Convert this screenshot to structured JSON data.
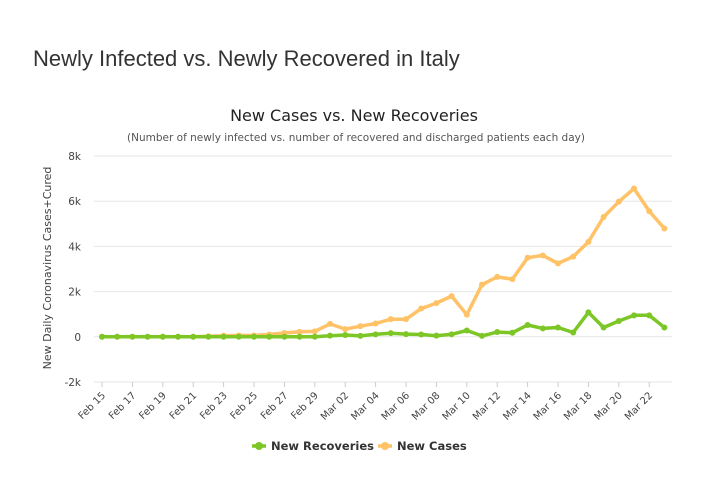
{
  "page": {
    "heading": "Newly Infected vs. Newly Recovered in Italy"
  },
  "chart_data": {
    "type": "line",
    "title": "New Cases vs. New Recoveries",
    "subtitle": "(Number of newly infected vs. number of recovered and discharged patients each day)",
    "ylabel": "New Daily Coronavirus Cases+Cured",
    "xlabel": "",
    "ylim": [
      -2000,
      8000
    ],
    "yticks": [
      -2000,
      0,
      2000,
      4000,
      6000,
      8000
    ],
    "ytick_labels": [
      "-2k",
      "0",
      "2k",
      "4k",
      "6k",
      "8k"
    ],
    "grid": true,
    "legend_position": "bottom-center",
    "x": [
      "Feb 15",
      "Feb 16",
      "Feb 17",
      "Feb 18",
      "Feb 19",
      "Feb 20",
      "Feb 21",
      "Feb 22",
      "Feb 23",
      "Feb 24",
      "Feb 25",
      "Feb 26",
      "Feb 27",
      "Feb 28",
      "Feb 29",
      "Mar 01",
      "Mar 02",
      "Mar 03",
      "Mar 04",
      "Mar 05",
      "Mar 06",
      "Mar 07",
      "Mar 08",
      "Mar 09",
      "Mar 10",
      "Mar 11",
      "Mar 12",
      "Mar 13",
      "Mar 14",
      "Mar 15",
      "Mar 16",
      "Mar 17",
      "Mar 18",
      "Mar 19",
      "Mar 20",
      "Mar 21",
      "Mar 22",
      "Mar 23"
    ],
    "x_tick_labels": [
      "Feb 15",
      "Feb 17",
      "Feb 19",
      "Feb 21",
      "Feb 23",
      "Feb 25",
      "Feb 27",
      "Feb 29",
      "Mar 02",
      "Mar 04",
      "Mar 06",
      "Mar 08",
      "Mar 10",
      "Mar 12",
      "Mar 14",
      "Mar 16",
      "Mar 18",
      "Mar 20",
      "Mar 22"
    ],
    "series": [
      {
        "name": "New Recoveries",
        "color": "#7cc626",
        "values": [
          0,
          0,
          0,
          0,
          0,
          0,
          0,
          0,
          0,
          0,
          0,
          0,
          0,
          0,
          0,
          50,
          80,
          40,
          110,
          160,
          120,
          100,
          50,
          110,
          280,
          40,
          210,
          180,
          520,
          370,
          410,
          190,
          1080,
          410,
          700,
          950,
          950,
          410
        ]
      },
      {
        "name": "New Cases",
        "color": "#ffc266",
        "values": [
          0,
          0,
          0,
          0,
          0,
          0,
          0,
          20,
          50,
          60,
          60,
          100,
          170,
          220,
          240,
          570,
          340,
          470,
          590,
          780,
          780,
          1250,
          1490,
          1800,
          980,
          2310,
          2650,
          2550,
          3500,
          3600,
          3250,
          3550,
          4200,
          5300,
          5980,
          6560,
          5560,
          4790
        ]
      }
    ]
  }
}
